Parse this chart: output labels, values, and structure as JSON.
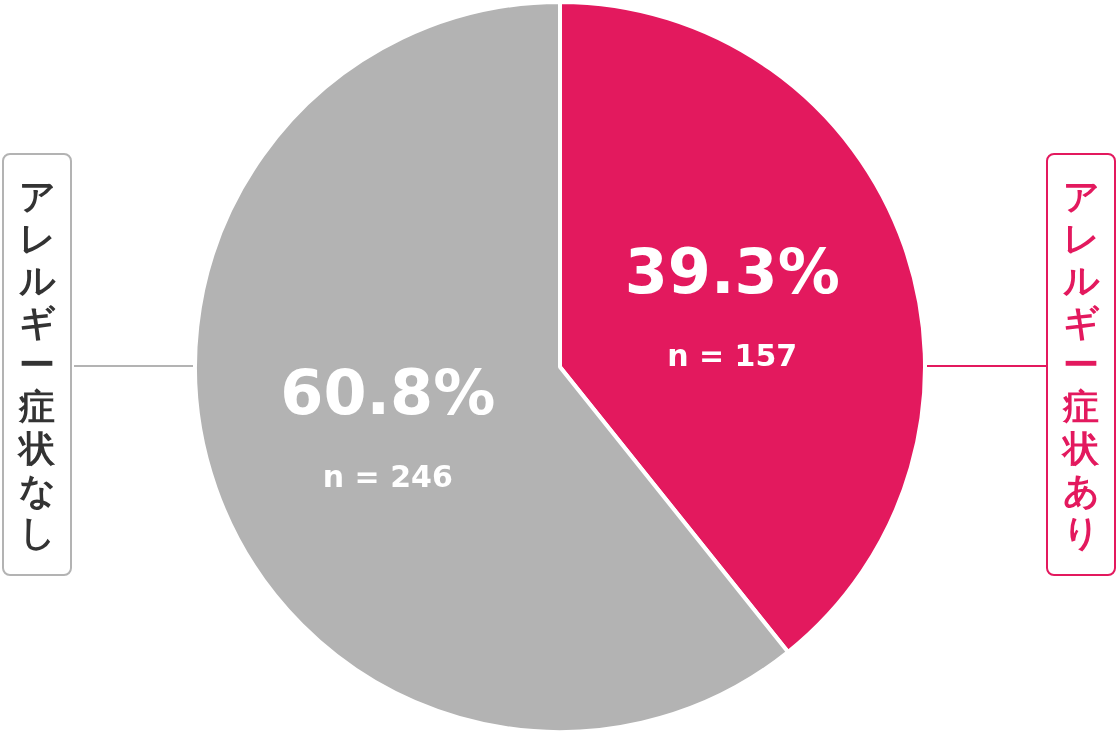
{
  "chart_data": {
    "type": "pie",
    "categories": [
      "アレルギー症状あり",
      "アレルギー症状なし"
    ],
    "values": [
      39.3,
      60.8
    ],
    "colors": [
      "#e3195e",
      "#b3b3b3"
    ],
    "value_labels": [
      "39.3%",
      "60.8%"
    ],
    "annotations": [
      "n = 157",
      "n = 246"
    ]
  }
}
